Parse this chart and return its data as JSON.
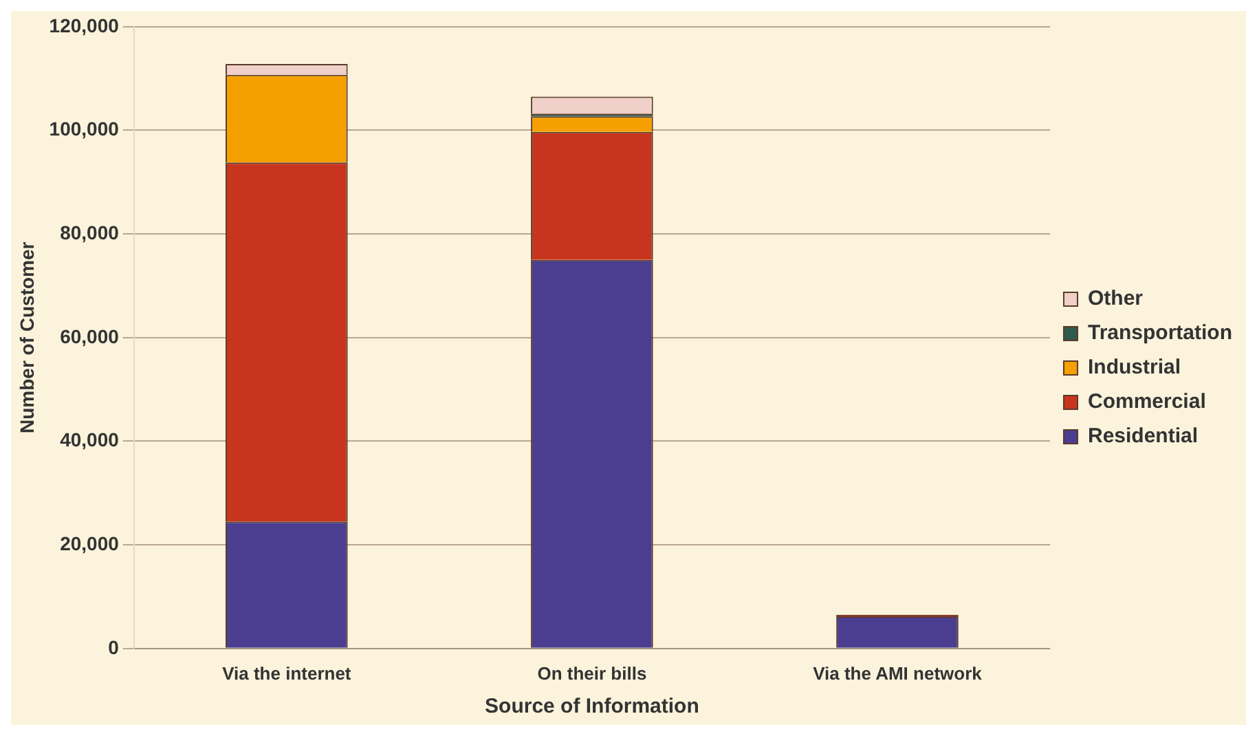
{
  "chart_data": {
    "type": "bar",
    "stacked": true,
    "xlabel": "Source of Information",
    "ylabel": "Number of Customer",
    "categories": [
      "Via the internet",
      "On their bills",
      "Via the AMI network"
    ],
    "series": [
      {
        "name": "Residential",
        "color": "#4b3d8f",
        "values": [
          24500,
          75000,
          6200
        ]
      },
      {
        "name": "Commercial",
        "color": "#c8351e",
        "values": [
          69300,
          24700,
          300
        ]
      },
      {
        "name": "Industrial",
        "color": "#f5a000",
        "values": [
          16900,
          3000,
          0
        ]
      },
      {
        "name": "Transportation",
        "color": "#2f5b4e",
        "values": [
          0,
          500,
          0
        ]
      },
      {
        "name": "Other",
        "color": "#f0d0c8",
        "values": [
          2100,
          3300,
          0
        ]
      }
    ],
    "ylim": [
      0,
      120000
    ],
    "yticks": [
      0,
      {
        "value": 20000,
        "label": "20,000"
      },
      {
        "value": 40000,
        "label": "40,000"
      },
      {
        "value": 60000,
        "label": "60,000"
      },
      {
        "value": 80000,
        "label": "80,000"
      },
      {
        "value": 100000,
        "label": "100,000"
      },
      {
        "value": 120000,
        "label": "120,000"
      }
    ],
    "grid": "y",
    "legend": "right"
  }
}
